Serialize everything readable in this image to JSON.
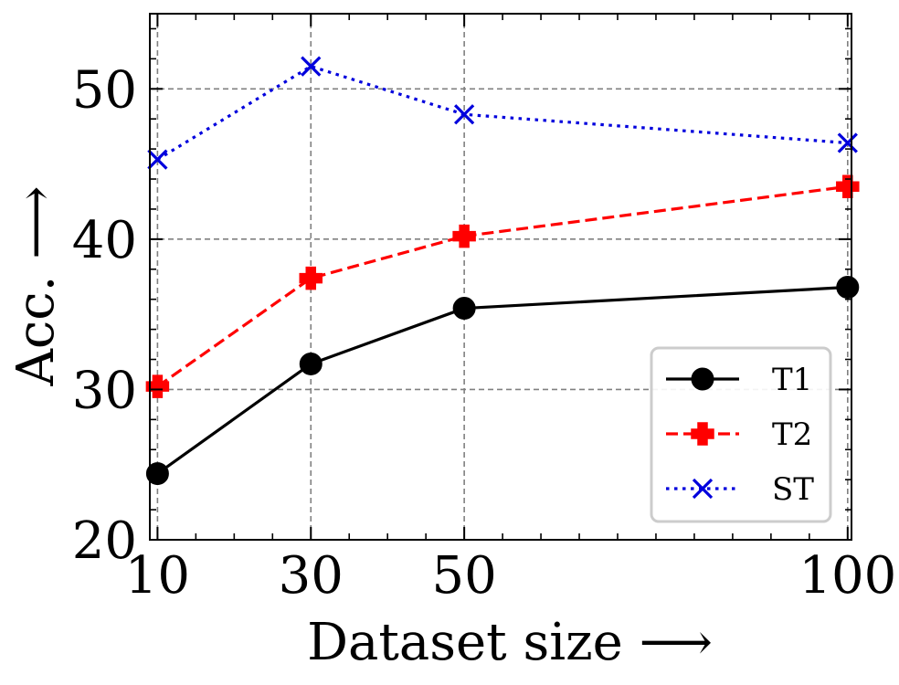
{
  "chart_data": {
    "type": "line",
    "title": "",
    "xlabel": "Dataset size ⟶",
    "ylabel": "Acc. ⟶",
    "x": [
      10,
      30,
      50,
      100
    ],
    "xticks": [
      10,
      30,
      50,
      100
    ],
    "xtick_labels": [
      "10",
      "30",
      "50",
      "100"
    ],
    "xlim": [
      9,
      100.5
    ],
    "yticks": [
      20,
      30,
      40,
      50
    ],
    "ytick_labels": [
      "20",
      "30",
      "40",
      "50"
    ],
    "ylim": [
      20,
      55
    ],
    "grid": true,
    "legend_position": "lower-right",
    "series": [
      {
        "name": "T1",
        "values": [
          24.4,
          31.7,
          35.4,
          36.8
        ],
        "color": "#000000",
        "marker": "circle",
        "line_style": "solid"
      },
      {
        "name": "T2",
        "values": [
          30.2,
          37.4,
          40.2,
          43.5
        ],
        "color": "#ff0000",
        "marker": "plus-filled",
        "line_style": "dashed"
      },
      {
        "name": "ST",
        "values": [
          45.3,
          51.5,
          48.3,
          46.4
        ],
        "color": "#0000dd",
        "marker": "x",
        "line_style": "dotted"
      }
    ]
  }
}
